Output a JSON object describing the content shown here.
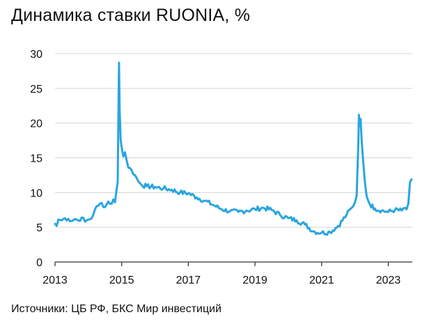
{
  "title": "Динамика ставки RUONIA, %",
  "source": "Источники: ЦБ РФ, БКС Мир инвестиций",
  "colors": {
    "series": "#2aa5df",
    "grid": "#d4d4d4",
    "axis": "#333333"
  },
  "chart_data": {
    "type": "line",
    "title": "Динамика ставки RUONIA, %",
    "xlabel": "",
    "ylabel": "",
    "xlim": [
      2013.0,
      2023.72
    ],
    "ylim": [
      0,
      30
    ],
    "y_ticks": [
      0,
      5,
      10,
      15,
      20,
      25,
      30
    ],
    "x_ticks": [
      "2013",
      "2015",
      "2017",
      "2019",
      "2021",
      "2023"
    ],
    "x_tick_values": [
      2013,
      2015,
      2017,
      2019,
      2021,
      2023
    ],
    "grid": "horizontal",
    "legend": "none",
    "series": [
      {
        "x": [
          2013.0,
          2013.05,
          2013.1,
          2013.2,
          2013.3,
          2013.4,
          2013.5,
          2013.6,
          2013.7,
          2013.8,
          2013.9,
          2014.0,
          2014.1,
          2014.2,
          2014.3,
          2014.4,
          2014.5,
          2014.6,
          2014.7,
          2014.75,
          2014.8,
          2014.85,
          2014.88,
          2014.9,
          2014.92,
          2014.94,
          2014.97,
          2015.0,
          2015.05,
          2015.1,
          2015.15,
          2015.2,
          2015.3,
          2015.4,
          2015.5,
          2015.6,
          2015.75,
          2016.0,
          2016.25,
          2016.5,
          2016.75,
          2017.0,
          2017.25,
          2017.5,
          2017.75,
          2018.0,
          2018.25,
          2018.5,
          2018.75,
          2019.0,
          2019.25,
          2019.5,
          2019.75,
          2020.0,
          2020.25,
          2020.5,
          2020.75,
          2021.0,
          2021.25,
          2021.5,
          2021.75,
          2021.9,
          2022.0,
          2022.05,
          2022.1,
          2022.12,
          2022.14,
          2022.17,
          2022.2,
          2022.25,
          2022.3,
          2022.35,
          2022.45,
          2022.6,
          2022.8,
          2023.0,
          2023.2,
          2023.4,
          2023.5,
          2023.55,
          2023.6,
          2023.65,
          2023.7
        ],
        "y": [
          5.5,
          5.2,
          6.1,
          6.0,
          6.3,
          6.2,
          5.9,
          6.2,
          6.0,
          6.4,
          5.8,
          6.1,
          6.3,
          7.6,
          8.1,
          8.5,
          7.9,
          8.7,
          8.4,
          9.0,
          8.6,
          10.5,
          11.5,
          20.0,
          28.7,
          22.0,
          17.5,
          16.5,
          15.2,
          15.8,
          14.6,
          13.6,
          13.2,
          12.5,
          11.6,
          11.1,
          10.9,
          10.8,
          10.6,
          10.4,
          10.0,
          9.9,
          9.3,
          8.8,
          8.2,
          7.6,
          7.3,
          7.2,
          7.4,
          7.6,
          7.8,
          7.5,
          6.8,
          6.3,
          6.0,
          5.4,
          4.4,
          4.2,
          4.3,
          5.2,
          6.8,
          7.8,
          8.6,
          9.5,
          17.0,
          21.2,
          19.6,
          20.6,
          17.5,
          14.2,
          11.5,
          9.5,
          8.3,
          7.7,
          7.4,
          7.2,
          7.5,
          7.4,
          7.8,
          7.6,
          8.4,
          11.5,
          11.9
        ]
      }
    ]
  }
}
